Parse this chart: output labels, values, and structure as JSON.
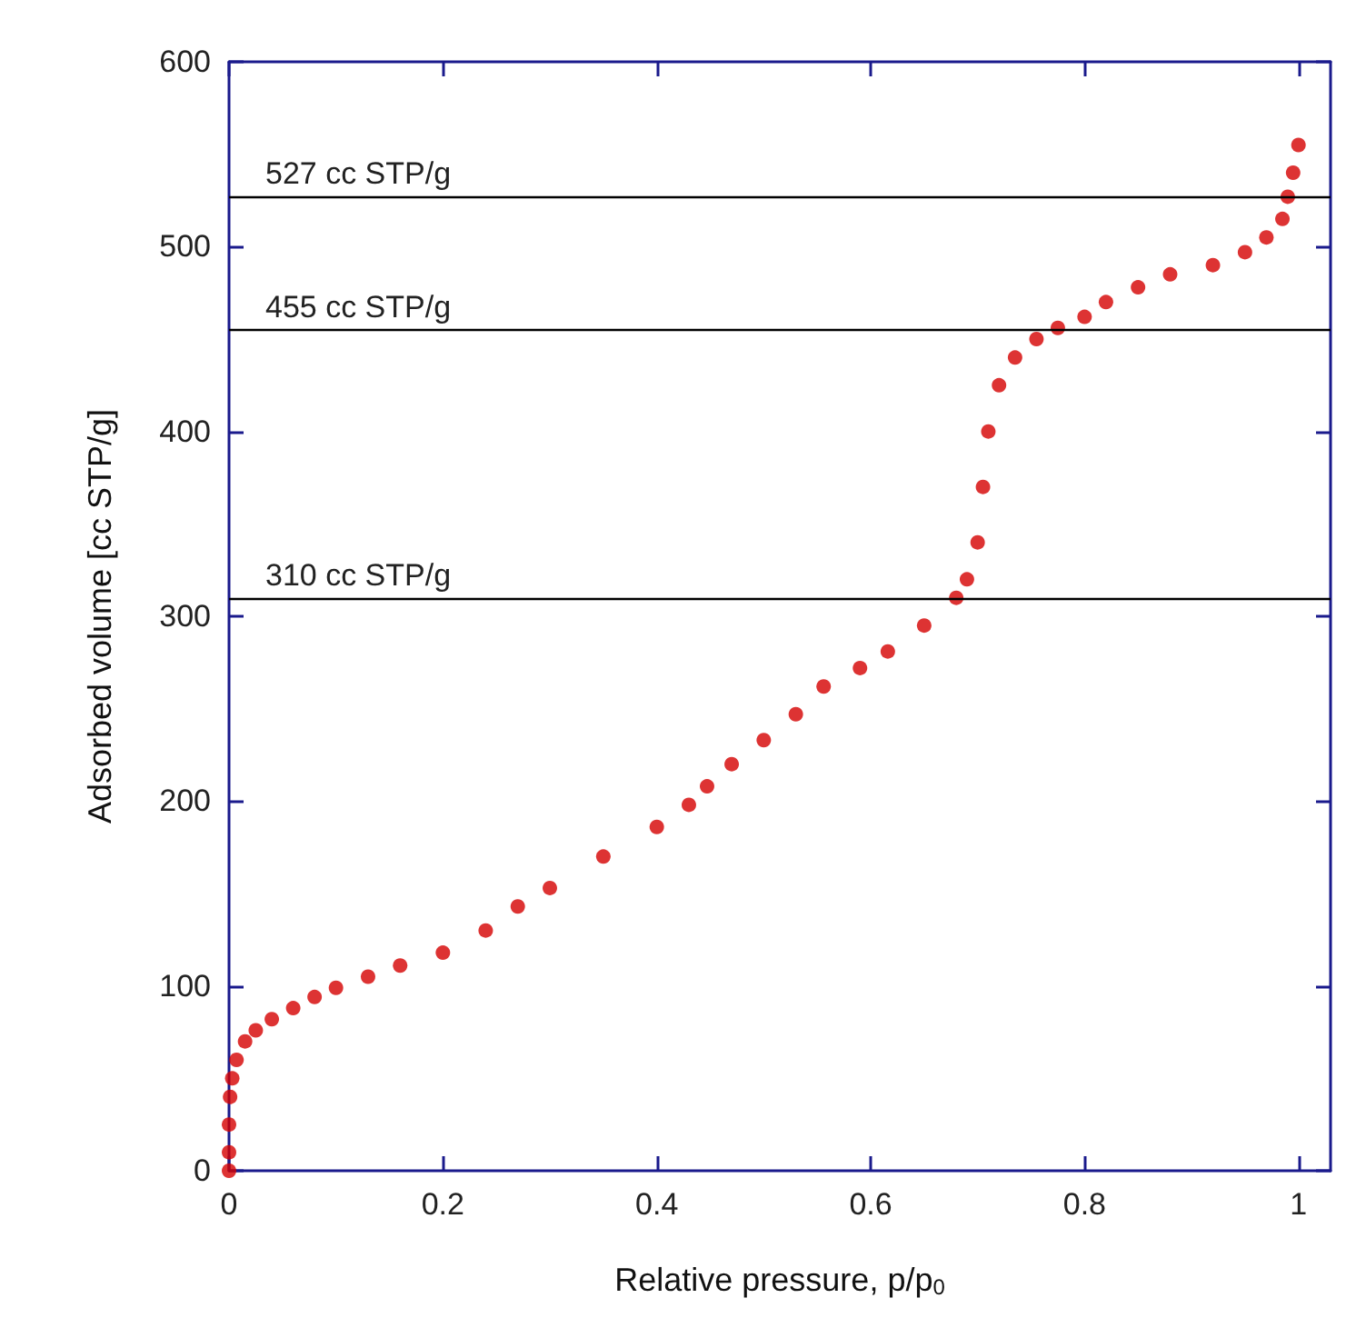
{
  "chart_data": {
    "type": "scatter",
    "xlabel": "Relative pressure, p/p$_{0}$",
    "ylabel": "Adsorbed volume [cc STP/g]",
    "xlim": [
      0,
      1.03
    ],
    "xticks": [
      0,
      0.2,
      0.4,
      0.6,
      0.8,
      1
    ],
    "ylim": [
      0,
      600
    ],
    "yticks": [
      0,
      100,
      200,
      300,
      400,
      500,
      600
    ],
    "marker": "circle",
    "ref_lines": [
      {
        "axis": "y",
        "value": 527,
        "label": "527 cc STP/g",
        "color": "#000000"
      },
      {
        "axis": "y",
        "value": 455,
        "label": "455 cc STP/g",
        "color": "#000000"
      },
      {
        "axis": "y",
        "value": 310,
        "label": "310 cc STP/g",
        "color": "#000000"
      }
    ],
    "series": [
      {
        "color": "#d40000",
        "x": [
          0,
          0,
          0,
          0.001,
          0.003,
          0.007,
          0.015,
          0.025,
          0.04,
          0.06,
          0.08,
          0.1,
          0.13,
          0.16,
          0.2,
          0.24,
          0.27,
          0.3,
          0.35,
          0.4,
          0.43,
          0.447,
          0.47,
          0.5,
          0.53,
          0.556,
          0.59,
          0.616,
          0.65,
          0.68,
          0.69,
          0.7,
          0.705,
          0.71,
          0.72,
          0.735,
          0.755,
          0.775,
          0.8,
          0.82,
          0.85,
          0.88,
          0.92,
          0.95,
          0.97,
          0.985,
          0.99,
          0.995,
          1.0
        ],
        "values": [
          0,
          10,
          25,
          40,
          50,
          60,
          70,
          76,
          82,
          88,
          94,
          99,
          105,
          111,
          118,
          130,
          143,
          153,
          170,
          186,
          198,
          208,
          220,
          233,
          247,
          262,
          272,
          281,
          295,
          310,
          320,
          340,
          370,
          400,
          425,
          440,
          450,
          456,
          462,
          470,
          478,
          485,
          490,
          497,
          505,
          515,
          527,
          540,
          555
        ]
      }
    ]
  }
}
